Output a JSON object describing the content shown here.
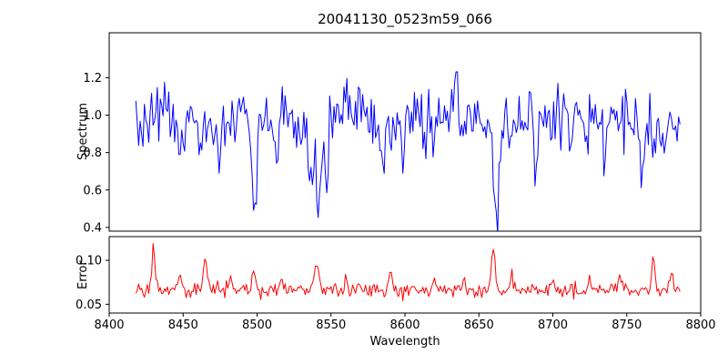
{
  "title": "20041130_0523m59_066",
  "chart_data": {
    "type": "line",
    "title": "20041130_0523m59_066",
    "xlabel": "Wavelength",
    "grid": false,
    "legend_position": "none",
    "x_range": [
      8400,
      8800
    ],
    "x_data_range": [
      8418,
      8786
    ],
    "x_ticks": [
      8400,
      8450,
      8500,
      8550,
      8600,
      8650,
      8700,
      8750,
      8800
    ],
    "x_tick_labels": [
      "8400",
      "8450",
      "8500",
      "8550",
      "8600",
      "8650",
      "8700",
      "8750",
      "8800"
    ],
    "panels": [
      {
        "name": "spectrum",
        "ylabel": "Spectrum",
        "ylim": [
          0.38,
          1.44
        ],
        "y_ticks": [
          0.4,
          0.6,
          0.8,
          1.0,
          1.2
        ],
        "y_tick_labels": [
          "0.4",
          "0.6",
          "0.8",
          "1.0",
          "1.2"
        ],
        "color": "#0000ff",
        "baseline": 0.97,
        "noise_sigma": 0.088,
        "seed": 20041130,
        "n_points": 380,
        "features": [
          {
            "center": 8448,
            "amp": -0.22,
            "width": 1.2
          },
          {
            "center": 8462,
            "amp": -0.16,
            "width": 1.0
          },
          {
            "center": 8475,
            "amp": -0.26,
            "width": 1.2
          },
          {
            "center": 8498,
            "amp": -0.45,
            "width": 1.6
          },
          {
            "center": 8514,
            "amp": -0.2,
            "width": 1.0
          },
          {
            "center": 8536,
            "amp": -0.32,
            "width": 1.2
          },
          {
            "center": 8542,
            "amp": -0.5,
            "width": 1.8
          },
          {
            "center": 8547,
            "amp": -0.3,
            "width": 1.0
          },
          {
            "center": 8585,
            "amp": -0.24,
            "width": 1.2
          },
          {
            "center": 8598,
            "amp": -0.18,
            "width": 1.0
          },
          {
            "center": 8620,
            "amp": -0.18,
            "width": 1.0
          },
          {
            "center": 8634,
            "amp": 0.24,
            "width": 1.0
          },
          {
            "center": 8662,
            "amp": -0.55,
            "width": 1.8
          },
          {
            "center": 8688,
            "amp": -0.3,
            "width": 1.2
          },
          {
            "center": 8712,
            "amp": -0.24,
            "width": 1.0
          },
          {
            "center": 8735,
            "amp": -0.2,
            "width": 1.0
          },
          {
            "center": 8760,
            "amp": -0.34,
            "width": 1.3
          },
          {
            "center": 8775,
            "amp": -0.2,
            "width": 1.0
          }
        ]
      },
      {
        "name": "error",
        "ylabel": "Error",
        "ylim": [
          0.04,
          0.127
        ],
        "y_ticks": [
          0.05,
          0.1
        ],
        "y_tick_labels": [
          "0.05",
          "0.10"
        ],
        "color": "#ff0000",
        "baseline": 0.066,
        "noise_sigma": 0.004,
        "seed": 523,
        "n_points": 380,
        "features": [
          {
            "center": 8430,
            "amp": 0.048,
            "width": 1.2
          },
          {
            "center": 8448,
            "amp": 0.02,
            "width": 1.0
          },
          {
            "center": 8465,
            "amp": 0.032,
            "width": 1.3
          },
          {
            "center": 8482,
            "amp": 0.012,
            "width": 1.0
          },
          {
            "center": 8498,
            "amp": 0.022,
            "width": 1.2
          },
          {
            "center": 8516,
            "amp": 0.012,
            "width": 1.0
          },
          {
            "center": 8540,
            "amp": 0.027,
            "width": 1.5
          },
          {
            "center": 8560,
            "amp": 0.012,
            "width": 1.0
          },
          {
            "center": 8590,
            "amp": 0.018,
            "width": 1.2
          },
          {
            "center": 8620,
            "amp": 0.012,
            "width": 1.0
          },
          {
            "center": 8640,
            "amp": 0.012,
            "width": 1.0
          },
          {
            "center": 8660,
            "amp": 0.05,
            "width": 1.4
          },
          {
            "center": 8672,
            "amp": 0.02,
            "width": 1.0
          },
          {
            "center": 8700,
            "amp": 0.016,
            "width": 1.0
          },
          {
            "center": 8725,
            "amp": 0.012,
            "width": 1.0
          },
          {
            "center": 8745,
            "amp": 0.014,
            "width": 1.0
          },
          {
            "center": 8768,
            "amp": 0.042,
            "width": 1.2
          },
          {
            "center": 8780,
            "amp": 0.02,
            "width": 1.0
          }
        ]
      }
    ]
  }
}
